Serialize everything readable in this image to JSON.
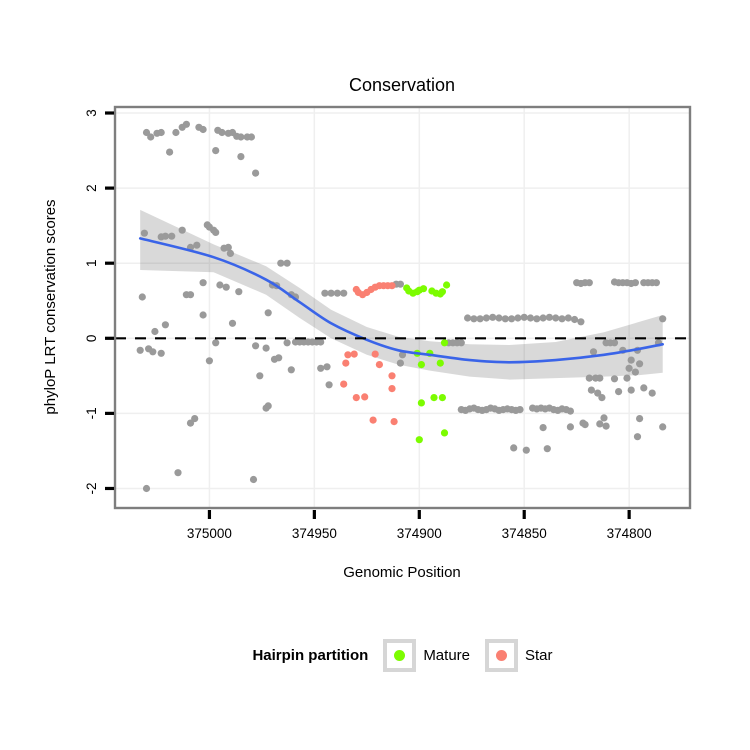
{
  "title": "Conservation",
  "axes": {
    "x": {
      "label": "Genomic Position",
      "ticks": [
        375000,
        374950,
        374900,
        374850,
        374800
      ],
      "domain_left": 375045,
      "domain_right": 374771,
      "reversed": true
    },
    "y": {
      "label": "phyloP LRT conservation scores",
      "ticks": [
        3,
        2,
        1,
        0,
        -1,
        -2
      ],
      "domain_top": 3.08,
      "domain_bottom": -2.26
    }
  },
  "legend": {
    "title": "Hairpin partition",
    "items": [
      {
        "label": "Mature",
        "color": "#7CFC00"
      },
      {
        "label": "Star",
        "color": "#FA8072"
      }
    ]
  },
  "colors": {
    "other": "#9a9a9a",
    "mature": "#7CFC00",
    "star": "#FA8072",
    "smooth_line": "#3a64e8",
    "ribbon": "rgba(80,80,80,0.22)",
    "zero_line": "#000000",
    "panel_border": "#7e7e7e",
    "grid": "#efefef",
    "tick": "#000000"
  },
  "chart_data": {
    "type": "scatter",
    "xlabel": "Genomic Position",
    "ylabel": "phyloP LRT conservation scores",
    "title": "Conservation",
    "x_ticks": [
      375000,
      374950,
      374900,
      374850,
      374800
    ],
    "y_ticks": [
      3,
      2,
      1,
      0,
      -1,
      -2
    ],
    "x_range": [
      375045,
      374771
    ],
    "y_range": [
      3.08,
      -2.26
    ],
    "zero_line_y": 0,
    "series": [
      {
        "name": "other",
        "points": [
          [
            375030,
            2.74
          ],
          [
            375028,
            2.68
          ],
          [
            375025,
            2.73
          ],
          [
            375023,
            2.74
          ],
          [
            375019,
            2.48
          ],
          [
            375016,
            2.74
          ],
          [
            375013,
            2.81
          ],
          [
            375011,
            2.85
          ],
          [
            375005,
            2.81
          ],
          [
            375003,
            2.78
          ],
          [
            374997,
            2.5
          ],
          [
            374996,
            2.77
          ],
          [
            374994,
            2.74
          ],
          [
            374991,
            2.73
          ],
          [
            374989,
            2.74
          ],
          [
            374987,
            2.69
          ],
          [
            374985,
            2.42
          ],
          [
            374985,
            2.68
          ],
          [
            374982,
            2.68
          ],
          [
            374980,
            2.68
          ],
          [
            374978,
            2.2
          ],
          [
            375031,
            1.4
          ],
          [
            375023,
            1.35
          ],
          [
            375021,
            1.36
          ],
          [
            375018,
            1.36
          ],
          [
            375013,
            1.44
          ],
          [
            375009,
            1.21
          ],
          [
            375006,
            1.24
          ],
          [
            375001,
            1.51
          ],
          [
            375000,
            1.48
          ],
          [
            374998,
            1.44
          ],
          [
            374997,
            1.41
          ],
          [
            374993,
            1.2
          ],
          [
            374991,
            1.21
          ],
          [
            374990,
            1.13
          ],
          [
            374966,
            1.0
          ],
          [
            374963,
            1.0
          ],
          [
            375032,
            0.55
          ],
          [
            375011,
            0.58
          ],
          [
            375009,
            0.58
          ],
          [
            375003,
            0.74
          ],
          [
            374995,
            0.71
          ],
          [
            374992,
            0.68
          ],
          [
            374986,
            0.62
          ],
          [
            374970,
            0.71
          ],
          [
            374968,
            0.7
          ],
          [
            374961,
            0.58
          ],
          [
            374959,
            0.55
          ],
          [
            374945,
            0.6
          ],
          [
            374942,
            0.6
          ],
          [
            374939,
            0.6
          ],
          [
            374936,
            0.6
          ],
          [
            374911,
            0.72
          ],
          [
            374909,
            0.72
          ],
          [
            374825,
            0.74
          ],
          [
            374823,
            0.73
          ],
          [
            374821,
            0.74
          ],
          [
            374819,
            0.74
          ],
          [
            374807,
            0.75
          ],
          [
            374805,
            0.74
          ],
          [
            374803,
            0.74
          ],
          [
            374801,
            0.74
          ],
          [
            374799,
            0.73
          ],
          [
            374797,
            0.74
          ],
          [
            374793,
            0.74
          ],
          [
            374791,
            0.74
          ],
          [
            374789,
            0.74
          ],
          [
            374787,
            0.74
          ],
          [
            375026,
            0.09
          ],
          [
            375021,
            0.18
          ],
          [
            375003,
            0.31
          ],
          [
            374989,
            0.2
          ],
          [
            374972,
            0.34
          ],
          [
            374784,
            0.26
          ],
          [
            374877,
            0.27
          ],
          [
            374874,
            0.26
          ],
          [
            374871,
            0.26
          ],
          [
            374868,
            0.27
          ],
          [
            374865,
            0.28
          ],
          [
            374862,
            0.27
          ],
          [
            374859,
            0.26
          ],
          [
            374856,
            0.26
          ],
          [
            374853,
            0.27
          ],
          [
            374850,
            0.28
          ],
          [
            374847,
            0.27
          ],
          [
            374844,
            0.26
          ],
          [
            374841,
            0.27
          ],
          [
            374838,
            0.28
          ],
          [
            374835,
            0.27
          ],
          [
            374832,
            0.26
          ],
          [
            374829,
            0.27
          ],
          [
            374826,
            0.25
          ],
          [
            374823,
            0.22
          ],
          [
            375033,
            -0.16
          ],
          [
            375029,
            -0.14
          ],
          [
            375027,
            -0.18
          ],
          [
            375023,
            -0.2
          ],
          [
            374997,
            -0.06
          ],
          [
            374978,
            -0.1
          ],
          [
            374973,
            -0.13
          ],
          [
            374963,
            -0.06
          ],
          [
            374959,
            -0.05
          ],
          [
            374957,
            -0.05
          ],
          [
            374955,
            -0.05
          ],
          [
            374953,
            -0.05
          ],
          [
            374951,
            -0.05
          ],
          [
            374949,
            -0.05
          ],
          [
            374947,
            -0.05
          ],
          [
            375000,
            -0.3
          ],
          [
            374969,
            -0.28
          ],
          [
            374967,
            -0.26
          ],
          [
            374961,
            -0.42
          ],
          [
            374976,
            -0.5
          ],
          [
            374947,
            -0.4
          ],
          [
            374944,
            -0.38
          ],
          [
            374943,
            -0.62
          ],
          [
            374909,
            -0.33
          ],
          [
            374908,
            -0.22
          ],
          [
            374886,
            -0.06
          ],
          [
            374884,
            -0.06
          ],
          [
            374882,
            -0.06
          ],
          [
            374880,
            -0.06
          ],
          [
            374817,
            -0.18
          ],
          [
            374811,
            -0.06
          ],
          [
            374809,
            -0.06
          ],
          [
            374807,
            -0.06
          ],
          [
            374786,
            -0.06
          ],
          [
            374803,
            -0.16
          ],
          [
            374796,
            -0.16
          ],
          [
            374799,
            -0.29
          ],
          [
            374797,
            -0.45
          ],
          [
            374795,
            -0.34
          ],
          [
            374800,
            -0.4
          ],
          [
            374819,
            -0.53
          ],
          [
            374816,
            -0.53
          ],
          [
            374814,
            -0.53
          ],
          [
            374807,
            -0.54
          ],
          [
            374801,
            -0.53
          ],
          [
            374818,
            -0.69
          ],
          [
            374815,
            -0.73
          ],
          [
            374813,
            -0.79
          ],
          [
            374805,
            -0.71
          ],
          [
            374799,
            -0.69
          ],
          [
            374793,
            -0.66
          ],
          [
            374789,
            -0.73
          ],
          [
            374973,
            -0.93
          ],
          [
            374972,
            -0.9
          ],
          [
            374880,
            -0.95
          ],
          [
            374878,
            -0.96
          ],
          [
            374876,
            -0.94
          ],
          [
            374874,
            -0.93
          ],
          [
            374872,
            -0.95
          ],
          [
            374870,
            -0.96
          ],
          [
            374868,
            -0.95
          ],
          [
            374866,
            -0.93
          ],
          [
            374864,
            -0.94
          ],
          [
            374862,
            -0.96
          ],
          [
            374860,
            -0.95
          ],
          [
            374858,
            -0.94
          ],
          [
            374856,
            -0.95
          ],
          [
            374854,
            -0.96
          ],
          [
            374852,
            -0.95
          ],
          [
            374846,
            -0.93
          ],
          [
            374844,
            -0.94
          ],
          [
            374842,
            -0.93
          ],
          [
            374840,
            -0.94
          ],
          [
            374838,
            -0.93
          ],
          [
            374836,
            -0.95
          ],
          [
            374834,
            -0.96
          ],
          [
            374832,
            -0.94
          ],
          [
            374830,
            -0.95
          ],
          [
            374828,
            -0.97
          ],
          [
            374841,
            -1.19
          ],
          [
            374828,
            -1.18
          ],
          [
            374822,
            -1.13
          ],
          [
            374821,
            -1.15
          ],
          [
            374814,
            -1.14
          ],
          [
            374812,
            -1.06
          ],
          [
            374811,
            -1.17
          ],
          [
            374796,
            -1.31
          ],
          [
            374795,
            -1.07
          ],
          [
            374784,
            -1.18
          ],
          [
            375009,
            -1.13
          ],
          [
            375007,
            -1.07
          ],
          [
            374855,
            -1.46
          ],
          [
            374849,
            -1.49
          ],
          [
            374839,
            -1.47
          ],
          [
            375015,
            -1.79
          ],
          [
            375030,
            -2.0
          ],
          [
            374979,
            -1.88
          ]
        ]
      },
      {
        "name": "mature",
        "points": [
          [
            374906,
            0.67
          ],
          [
            374905,
            0.63
          ],
          [
            374903,
            0.6
          ],
          [
            374901,
            0.62
          ],
          [
            374900,
            0.64
          ],
          [
            374898,
            0.66
          ],
          [
            374894,
            0.63
          ],
          [
            374892,
            0.6
          ],
          [
            374890,
            0.59
          ],
          [
            374889,
            0.62
          ],
          [
            374887,
            0.71
          ],
          [
            374888,
            -0.06
          ],
          [
            374901,
            -0.2
          ],
          [
            374895,
            -0.2
          ],
          [
            374899,
            -0.35
          ],
          [
            374890,
            -0.33
          ],
          [
            374899,
            -0.86
          ],
          [
            374893,
            -0.79
          ],
          [
            374889,
            -0.79
          ],
          [
            374900,
            -1.35
          ],
          [
            374888,
            -1.26
          ]
        ]
      },
      {
        "name": "star",
        "points": [
          [
            374930,
            0.65
          ],
          [
            374929,
            0.61
          ],
          [
            374927,
            0.58
          ],
          [
            374925,
            0.61
          ],
          [
            374923,
            0.65
          ],
          [
            374921,
            0.68
          ],
          [
            374919,
            0.7
          ],
          [
            374917,
            0.7
          ],
          [
            374915,
            0.7
          ],
          [
            374913,
            0.7
          ],
          [
            374934,
            -0.22
          ],
          [
            374931,
            -0.21
          ],
          [
            374935,
            -0.33
          ],
          [
            374921,
            -0.21
          ],
          [
            374919,
            -0.35
          ],
          [
            374913,
            -0.5
          ],
          [
            374936,
            -0.61
          ],
          [
            374930,
            -0.79
          ],
          [
            374926,
            -0.78
          ],
          [
            374913,
            -0.67
          ],
          [
            374922,
            -1.09
          ],
          [
            374912,
            -1.11
          ]
        ]
      }
    ],
    "smooth_line": [
      [
        375033,
        1.33
      ],
      [
        374998,
        1.08
      ],
      [
        374973,
        0.78
      ],
      [
        374957,
        0.48
      ],
      [
        374942,
        0.2
      ],
      [
        374925,
        -0.02
      ],
      [
        374910,
        -0.16
      ],
      [
        374895,
        -0.22
      ],
      [
        374876,
        -0.29
      ],
      [
        374857,
        -0.32
      ],
      [
        374835,
        -0.29
      ],
      [
        374812,
        -0.22
      ],
      [
        374795,
        -0.14
      ],
      [
        374784,
        -0.08
      ]
    ],
    "ribbon": [
      [
        375033,
        1.71,
        0.91
      ],
      [
        374998,
        1.25,
        0.88
      ],
      [
        374973,
        0.96,
        0.58
      ],
      [
        374957,
        0.67,
        0.27
      ],
      [
        374942,
        0.38,
        0.0
      ],
      [
        374925,
        0.15,
        -0.22
      ],
      [
        374910,
        0.02,
        -0.35
      ],
      [
        374895,
        -0.04,
        -0.43
      ],
      [
        374876,
        -0.08,
        -0.51
      ],
      [
        374857,
        -0.09,
        -0.55
      ],
      [
        374835,
        -0.05,
        -0.53
      ],
      [
        374812,
        0.08,
        -0.51
      ],
      [
        374795,
        0.22,
        -0.49
      ],
      [
        374784,
        0.31,
        -0.46
      ]
    ]
  }
}
